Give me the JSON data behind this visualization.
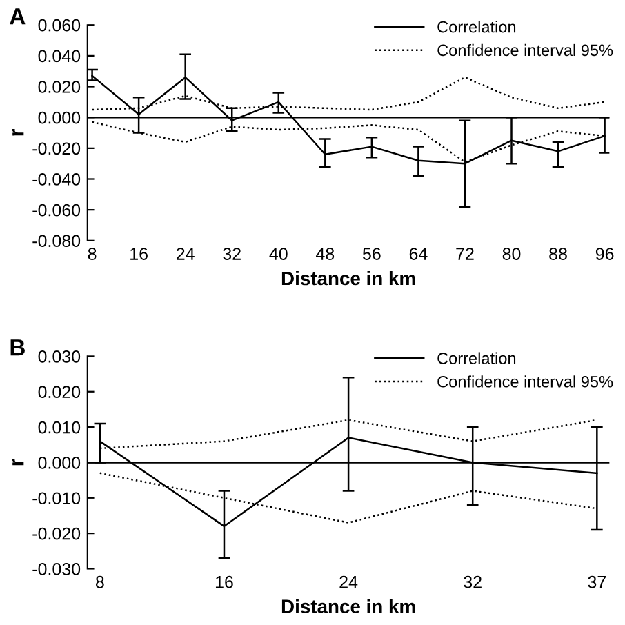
{
  "chart_data": [
    {
      "type": "line",
      "title": "A",
      "xlabel": "Distance in km",
      "ylabel": "r",
      "categories": [
        "8",
        "16",
        "24",
        "32",
        "40",
        "48",
        "56",
        "64",
        "72",
        "80",
        "88",
        "96"
      ],
      "series": [
        {
          "name": "Correlation",
          "color": "#000000",
          "line_style": "solid",
          "values": [
            0.027,
            0.002,
            0.026,
            -0.002,
            0.01,
            -0.024,
            -0.019,
            -0.028,
            -0.03,
            -0.015,
            -0.022,
            -0.012
          ],
          "errors": [
            [
              0.024,
              0.031
            ],
            [
              -0.01,
              0.013
            ],
            [
              0.012,
              0.041
            ],
            [
              -0.009,
              0.006
            ],
            [
              0.003,
              0.016
            ],
            [
              -0.032,
              -0.014
            ],
            [
              -0.026,
              -0.013
            ],
            [
              -0.038,
              -0.019
            ],
            [
              -0.058,
              -0.002
            ],
            [
              -0.03,
              0.0
            ],
            [
              -0.032,
              -0.016
            ],
            [
              -0.023,
              0.0
            ]
          ]
        },
        {
          "name": "Confidence interval 95%",
          "color": "#000000",
          "line_style": "dotted",
          "values": [
            0.005,
            0.006,
            0.014,
            0.006,
            0.007,
            0.006,
            0.005,
            0.01,
            0.026,
            0.013,
            0.006,
            0.01
          ]
        },
        {
          "color": "#000000",
          "line_style": "dotted",
          "values": [
            -0.003,
            -0.01,
            -0.016,
            -0.006,
            -0.008,
            -0.007,
            -0.005,
            -0.008,
            -0.029,
            -0.018,
            -0.009,
            -0.012
          ]
        }
      ],
      "ylim": [
        -0.08,
        0.06
      ],
      "yticks": [
        {
          "value": -0.08,
          "label": "-0.080"
        },
        {
          "value": -0.06,
          "label": "-0.060"
        },
        {
          "value": -0.04,
          "label": "-0.040"
        },
        {
          "value": -0.02,
          "label": "-0.020"
        },
        {
          "value": 0.0,
          "label": "0.000"
        },
        {
          "value": 0.02,
          "label": "0.020"
        },
        {
          "value": 0.04,
          "label": "0.040"
        },
        {
          "value": 0.06,
          "label": "0.060"
        }
      ],
      "ref_lines": [
        {
          "axis": "y",
          "value": 0,
          "color": "#000000"
        }
      ],
      "grid": false,
      "legend": "top right",
      "marker": "none"
    },
    {
      "type": "line",
      "title": "B",
      "xlabel": "Distance in km",
      "ylabel": "r",
      "categories": [
        "8",
        "16",
        "24",
        "32",
        "37"
      ],
      "series": [
        {
          "name": "Correlation",
          "color": "#000000",
          "line_style": "solid",
          "values": [
            0.006,
            -0.018,
            0.007,
            0.0,
            -0.003
          ],
          "errors": [
            [
              0.0,
              0.011
            ],
            [
              -0.027,
              -0.008
            ],
            [
              -0.008,
              0.024
            ],
            [
              -0.012,
              0.01
            ],
            [
              -0.019,
              0.01
            ]
          ]
        },
        {
          "name": "Confidence interval 95%",
          "color": "#000000",
          "line_style": "dotted",
          "values": [
            0.004,
            0.006,
            0.012,
            0.006,
            0.012
          ]
        },
        {
          "color": "#000000",
          "line_style": "dotted",
          "values": [
            -0.003,
            -0.01,
            -0.017,
            -0.008,
            -0.013
          ]
        }
      ],
      "ylim": [
        -0.03,
        0.03
      ],
      "yticks": [
        {
          "value": -0.03,
          "label": "-0.030"
        },
        {
          "value": -0.02,
          "label": "-0.020"
        },
        {
          "value": -0.01,
          "label": "-0.010"
        },
        {
          "value": 0.0,
          "label": "0.000"
        },
        {
          "value": 0.01,
          "label": "0.010"
        },
        {
          "value": 0.02,
          "label": "0.020"
        },
        {
          "value": 0.03,
          "label": "0.030"
        }
      ],
      "ref_lines": [
        {
          "axis": "y",
          "value": 0,
          "color": "#000000"
        }
      ],
      "grid": false,
      "legend": "top right",
      "marker": "none"
    }
  ]
}
